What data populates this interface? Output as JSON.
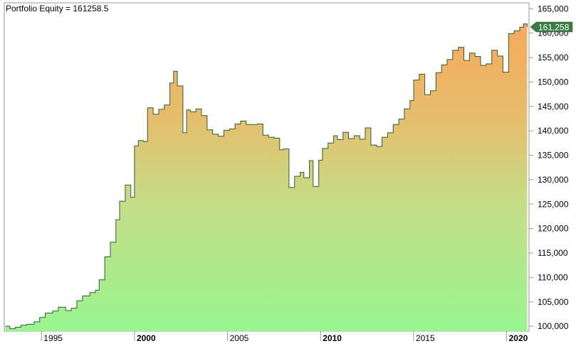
{
  "chart_data": {
    "type": "area",
    "title": "Portfolio Equity = 161258.5",
    "last_value_label": "161,258",
    "xlabel": "",
    "ylabel": "",
    "xlim": [
      1993.0,
      2021.2
    ],
    "ylim": [
      99000,
      166200
    ],
    "x_ticks": [
      {
        "value": 1995,
        "label": "1995",
        "bold": false
      },
      {
        "value": 2000,
        "label": "2000",
        "bold": true
      },
      {
        "value": 2005,
        "label": "2005",
        "bold": false
      },
      {
        "value": 2010,
        "label": "2010",
        "bold": true
      },
      {
        "value": 2015,
        "label": "2015",
        "bold": false
      },
      {
        "value": 2020,
        "label": "2020",
        "bold": true
      }
    ],
    "y_ticks": [
      {
        "value": 100000,
        "label": "100,000"
      },
      {
        "value": 105000,
        "label": "105,000"
      },
      {
        "value": 110000,
        "label": "110,000"
      },
      {
        "value": 115000,
        "label": "115,000"
      },
      {
        "value": 120000,
        "label": "120,000"
      },
      {
        "value": 125000,
        "label": "125,000"
      },
      {
        "value": 130000,
        "label": "130,000"
      },
      {
        "value": 135000,
        "label": "135,000"
      },
      {
        "value": 140000,
        "label": "140,000"
      },
      {
        "value": 145000,
        "label": "145,000"
      },
      {
        "value": 150000,
        "label": "150,000"
      },
      {
        "value": 155000,
        "label": "155,000"
      },
      {
        "value": 160000,
        "label": "160,000"
      },
      {
        "value": 165000,
        "label": "165,000"
      }
    ],
    "series": [
      {
        "x": [
          1993.05,
          1993.3,
          1993.6,
          1993.9,
          1994.2,
          1994.6,
          1994.9,
          1995.2,
          1995.6,
          1995.9,
          1996.3,
          1996.6,
          1996.9,
          1997.2,
          1997.6,
          1997.9,
          1998.1,
          1998.4,
          1998.7,
          1999.0,
          1999.2,
          1999.5,
          1999.8,
          2000.0,
          2000.2,
          2000.5,
          2000.7,
          2001.0,
          2001.3,
          2001.6,
          2001.9,
          2002.1,
          2002.3,
          2002.6,
          2002.8,
          2003.0,
          2003.3,
          2003.6,
          2003.9,
          2004.2,
          2004.5,
          2004.8,
          2005.1,
          2005.4,
          2005.7,
          2006.0,
          2006.3,
          2006.6,
          2006.9,
          2007.2,
          2007.5,
          2007.8,
          2008.0,
          2008.3,
          2008.6,
          2008.9,
          2009.1,
          2009.4,
          2009.6,
          2009.9,
          2010.1,
          2010.4,
          2010.7,
          2010.9,
          2011.2,
          2011.5,
          2011.8,
          2012.1,
          2012.4,
          2012.7,
          2013.0,
          2013.3,
          2013.6,
          2013.9,
          2014.2,
          2014.5,
          2014.8,
          2015.0,
          2015.3,
          2015.6,
          2015.9,
          2016.2,
          2016.5,
          2016.8,
          2017.1,
          2017.4,
          2017.7,
          2018.0,
          2018.3,
          2018.6,
          2018.9,
          2019.2,
          2019.5,
          2019.8,
          2020.1,
          2020.4,
          2020.7,
          2020.9,
          2021.1
        ],
        "y": [
          100000,
          99500,
          99800,
          100200,
          100400,
          100900,
          101800,
          102700,
          103100,
          103900,
          103200,
          103700,
          105200,
          106200,
          106900,
          107400,
          109500,
          114200,
          117200,
          121800,
          125600,
          128900,
          126400,
          136900,
          138000,
          137800,
          144700,
          143400,
          144400,
          145300,
          149800,
          152200,
          149200,
          139600,
          144300,
          143900,
          144500,
          143100,
          140200,
          139300,
          138900,
          140100,
          140400,
          141400,
          142000,
          141300,
          141300,
          141400,
          139100,
          138700,
          138500,
          136100,
          136300,
          128400,
          130700,
          131500,
          130400,
          133900,
          128600,
          134000,
          136400,
          137500,
          139000,
          138200,
          139700,
          138400,
          139000,
          138300,
          140600,
          137100,
          136800,
          138700,
          139600,
          141300,
          142400,
          144500,
          146200,
          150400,
          151600,
          147400,
          148200,
          151900,
          153500,
          154600,
          156500,
          157100,
          154400,
          155900,
          155200,
          153400,
          153700,
          156500,
          155300,
          152000,
          159900,
          160500,
          161200,
          161900,
          161258.5
        ]
      }
    ]
  }
}
